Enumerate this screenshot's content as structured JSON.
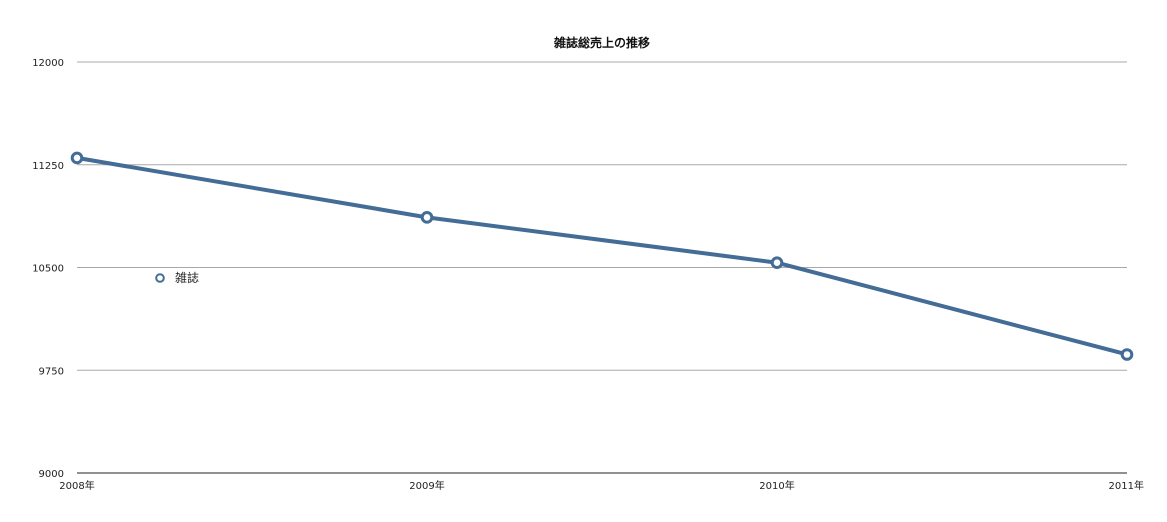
{
  "chart_data": {
    "type": "line",
    "title": "雑誌総売上の推移",
    "xlabel": "",
    "ylabel": "",
    "categories": [
      "2008年",
      "2009年",
      "2010年",
      "2011年"
    ],
    "series": [
      {
        "name": "雑誌",
        "values": [
          11300,
          10866,
          10535,
          9865
        ],
        "color": "#436c96"
      }
    ],
    "ylim": [
      9000,
      12000
    ],
    "yticks": [
      9000,
      9750,
      10500,
      11250,
      12000
    ],
    "grid": true,
    "legend_placement": "left-middle"
  }
}
